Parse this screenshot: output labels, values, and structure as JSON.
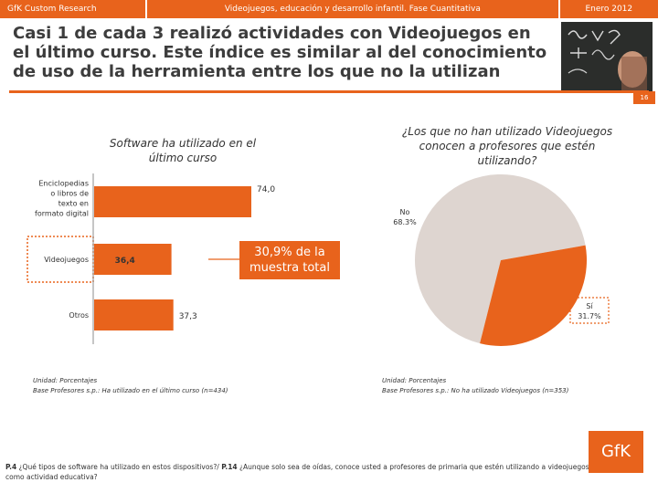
{
  "header": {
    "company": "GfK Custom Research",
    "study": "Videojuegos, educación y desarrollo infantil. Fase Cuantitativa",
    "date": "Enero 2012"
  },
  "headline": "Casi 1 de cada 3 realizó actividades con Videojuegos en el último curso. Este índice es similar al del conocimiento de uso de la herramienta entre los que no la utilizan",
  "page_number": "16",
  "callout": "30,9% de la muestra total",
  "logo": "GfK",
  "colors": {
    "accent": "#e8631c",
    "pie_grey": "#ded5d0"
  },
  "chart_data": [
    {
      "type": "bar",
      "orientation": "horizontal",
      "title": "Software ha utilizado en el último curso",
      "categories": [
        "Enciclopedias o libros de texto en formato digital",
        "Videojuegos",
        "Otros"
      ],
      "category_lines": [
        [
          "Enciclopedias",
          "o libros de",
          "texto en",
          "formato digital"
        ],
        [
          "Videojuegos"
        ],
        [
          "Otros"
        ]
      ],
      "values": [
        74.0,
        36.4,
        37.3
      ],
      "value_labels": [
        "74,0",
        "36,4",
        "37,3"
      ],
      "highlight": "Videojuegos",
      "xlim": [
        0,
        100
      ],
      "note": [
        "Unidad: Porcentajes",
        "Base Profesores s.p.: Ha utilizado en el último curso (n=434)"
      ]
    },
    {
      "type": "pie",
      "title": "¿Los que no han utilizado Videojuegos conocen a profesores que estén utilizando?",
      "slices": [
        {
          "label": "No",
          "value": 68.3,
          "label_text": "68.3%"
        },
        {
          "label": "Sí",
          "value": 31.7,
          "label_text": "31.7%"
        }
      ],
      "note": [
        "Unidad: Porcentajes",
        "Base Profesores s.p.: No ha utilizado Videojuegos (n=353)"
      ]
    }
  ],
  "footer": {
    "q1_code": "P.4",
    "q1_text": "¿Qué tipos de software ha utilizado en estos dispositivos?/",
    "q2_code": "P.14",
    "q2_text": "¿Aunque solo sea de oídas, conoce usted a profesores de primaria que estén utilizando a videojuegos como actividad educativa?"
  }
}
